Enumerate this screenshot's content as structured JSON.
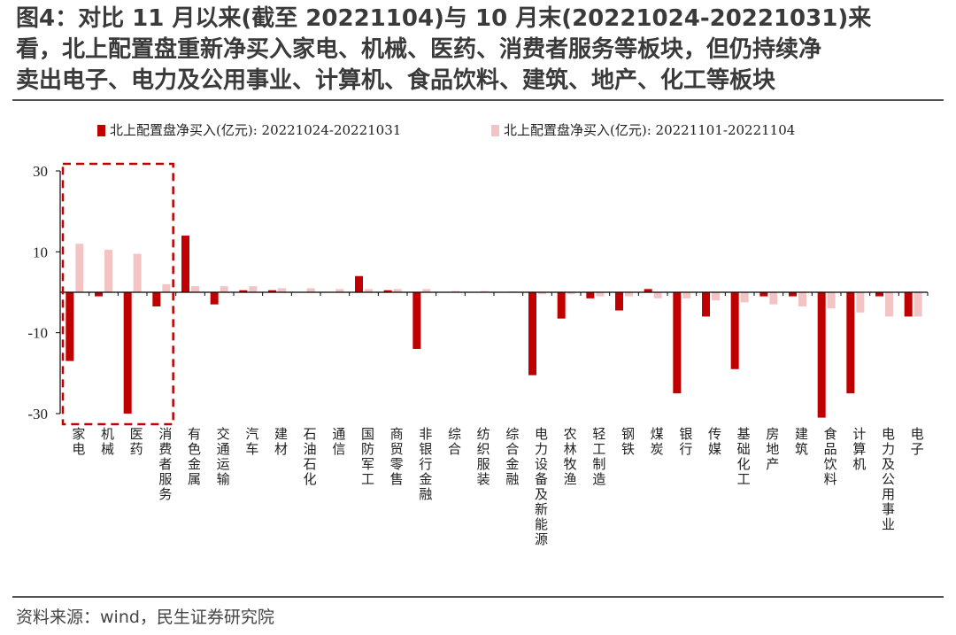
{
  "title": {
    "lines": [
      "图4：对比 11 月以来(截至 20221104)与 10 月末(20221024-20221031)来",
      "看，北上配置盘重新净买入家电、机械、医药、消费者服务等板块，但仍持续净",
      "卖出电子、电力及公用事业、计算机、食品饮料、建筑、地产、化工等板块"
    ]
  },
  "source": "资料来源：wind，民生证券研究院",
  "colors": {
    "series1": "#c00000",
    "series2": "#f4c4c4",
    "highlight_box": "#c00000",
    "axis": "#000000"
  },
  "chart_data": {
    "type": "bar",
    "title": "",
    "xlabel": "",
    "ylabel": "",
    "ylim": [
      -30,
      30
    ],
    "yticks": [
      -30,
      -10,
      10,
      30
    ],
    "ytick_labels": [
      "-30",
      "-10",
      "10",
      "30"
    ],
    "legend_position": "top",
    "categories": [
      "家电",
      "机械",
      "医药",
      "消费者服务",
      "有色金属",
      "交通运输",
      "汽车",
      "建材",
      "石油石化",
      "通信",
      "国防军工",
      "商贸零售",
      "非银行金融",
      "综合",
      "纺织服装",
      "综合金融",
      "电力设备及新能源",
      "农林牧渔",
      "轻工制造",
      "钢铁",
      "煤炭",
      "银行",
      "传媒",
      "基础化工",
      "房地产",
      "建筑",
      "食品饮料",
      "计算机",
      "电力及公用事业",
      "电子"
    ],
    "series": [
      {
        "name": "北上配置盘净买入(亿元): 20221024-20221031",
        "values": [
          -17,
          -1,
          -30,
          -3.5,
          14,
          -3,
          0.5,
          0.5,
          0,
          0,
          4,
          0.5,
          -14,
          0,
          0,
          0,
          -20.5,
          -6.5,
          -1.5,
          -4.5,
          0.8,
          -25,
          -6,
          -19,
          -1,
          -1,
          -31,
          -25,
          -1,
          -6
        ]
      },
      {
        "name": "北上配置盘净买入(亿元): 20221101-20221104",
        "values": [
          12,
          10.5,
          9.5,
          2,
          1.5,
          1.5,
          1.5,
          1,
          1,
          0.8,
          0.8,
          0.8,
          0.8,
          0.3,
          0.3,
          0.2,
          -0.5,
          -0.5,
          -1,
          -1,
          -1.5,
          -1.5,
          -2,
          -2.5,
          -3,
          -3.5,
          -4,
          -5,
          -6,
          -6
        ]
      }
    ],
    "highlight_categories": [
      "家电",
      "机械",
      "医药",
      "消费者服务"
    ]
  }
}
